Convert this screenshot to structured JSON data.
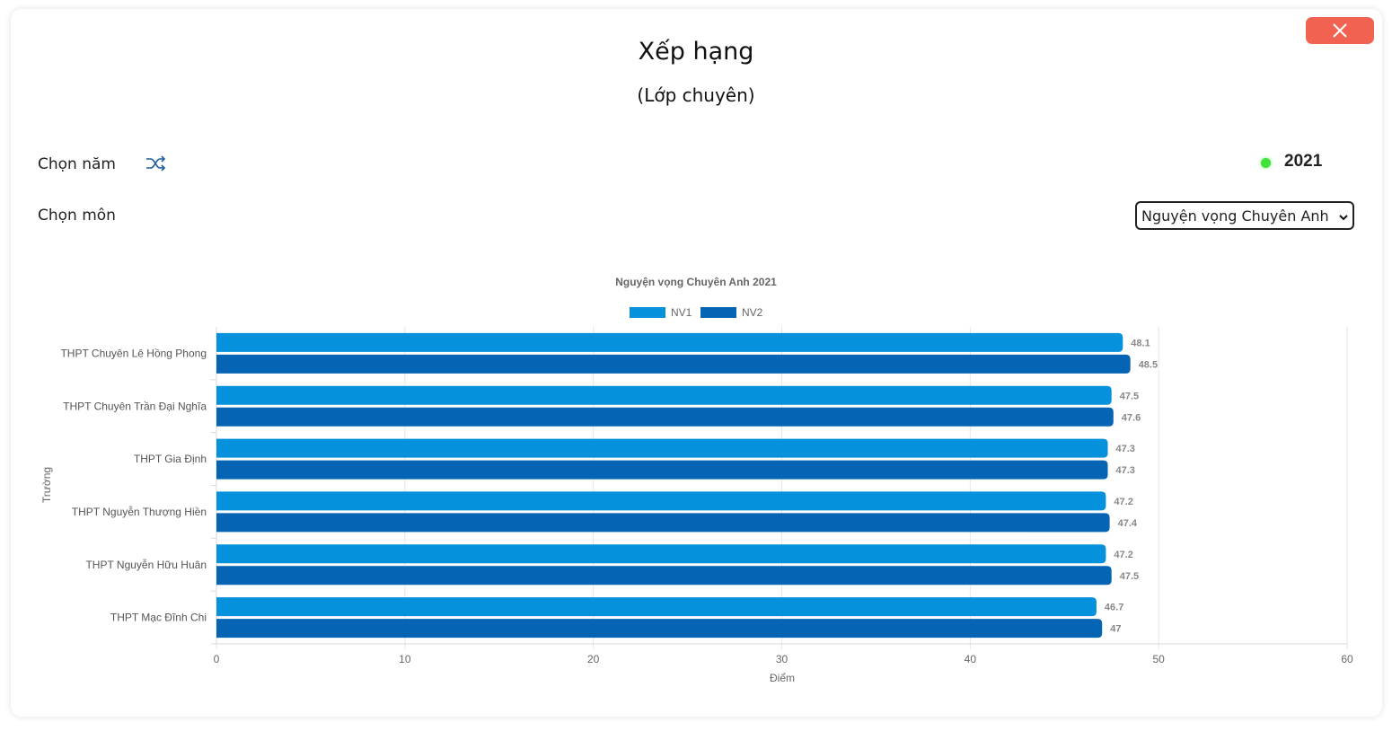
{
  "modal": {
    "title": "Xếp hạng",
    "subtitle": "(Lớp chuyên)",
    "year_label": "Chọn năm",
    "year_value": "2021",
    "subject_label": "Chọn môn",
    "subject_selected": "Nguyện vọng Chuyên Anh",
    "close_icon": "close-icon",
    "shuffle_icon": "shuffle-icon"
  },
  "colors": {
    "nv1": "#0591db",
    "nv2": "#0565b4",
    "close_button": "#f26250",
    "year_dot": "#3ee23a"
  },
  "chart_data": {
    "type": "bar",
    "orientation": "horizontal",
    "title": "Nguyện vọng Chuyên Anh 2021",
    "xlabel": "Điểm",
    "ylabel": "Trường",
    "xlim": [
      0,
      60
    ],
    "xticks": [
      0,
      10,
      20,
      30,
      40,
      50,
      60
    ],
    "grid": true,
    "legend_position": "top",
    "categories": [
      "THPT Chuyên Lê Hồng Phong",
      "THPT Chuyên Trần Đại Nghĩa",
      "THPT Gia Định",
      "THPT Nguyễn Thượng Hiền",
      "THPT Nguyễn Hữu Huân",
      "THPT Mạc Đĩnh Chi"
    ],
    "series": [
      {
        "name": "NV1",
        "values": [
          48.1,
          47.5,
          47.3,
          47.2,
          47.2,
          46.7
        ]
      },
      {
        "name": "NV2",
        "values": [
          48.5,
          47.6,
          47.3,
          47.4,
          47.5,
          47
        ]
      }
    ]
  }
}
